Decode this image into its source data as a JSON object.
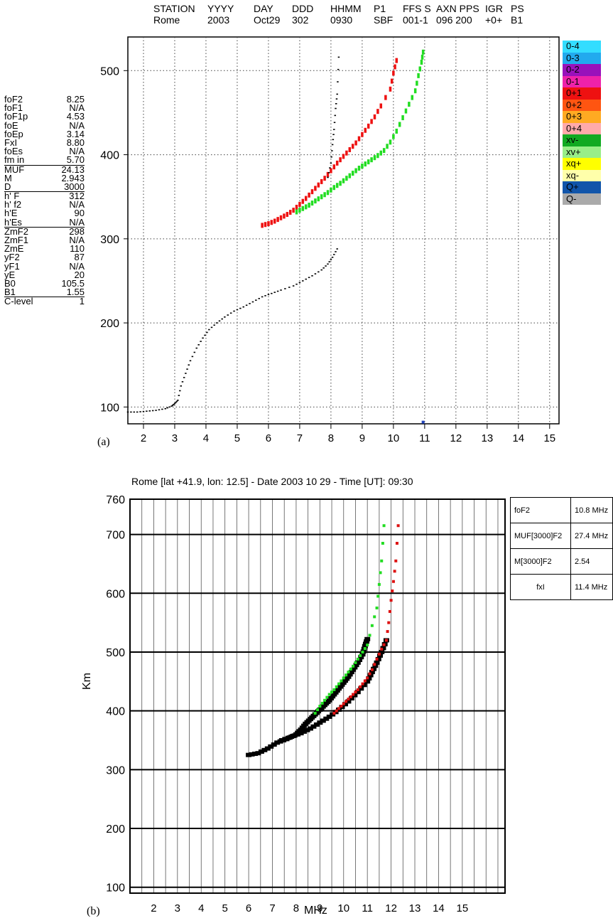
{
  "header": {
    "columns": [
      {
        "label": "STATION",
        "value": "Rome"
      },
      {
        "label": "YYYY",
        "value": "2003"
      },
      {
        "label": "DAY",
        "value": "Oct29"
      },
      {
        "label": "DDD",
        "value": "302"
      },
      {
        "label": "HHMM",
        "value": "0930"
      },
      {
        "label": "P1",
        "value": "SBF"
      },
      {
        "label": "FFS S",
        "value": "001-1"
      },
      {
        "label": "AXN PPS",
        "value": "096 200"
      },
      {
        "label": "IGR",
        "value": "+0+"
      },
      {
        "label": "PS",
        "value": "B1"
      }
    ]
  },
  "params": [
    {
      "name": "foF2",
      "value": "8.25"
    },
    {
      "name": "foF1",
      "value": "N/A"
    },
    {
      "name": "foF1p",
      "value": "4.53"
    },
    {
      "name": "foE",
      "value": "N/A"
    },
    {
      "name": "foEp",
      "value": "3.14"
    },
    {
      "name": "FxI",
      "value": "8.80"
    },
    {
      "name": "foEs",
      "value": "N/A"
    },
    {
      "name": "fm in",
      "value": "5.70"
    },
    {
      "name": "MUF",
      "value": "24.13",
      "sep": true
    },
    {
      "name": "M",
      "value": "2.943"
    },
    {
      "name": "D",
      "value": "3000"
    },
    {
      "name": "h' F",
      "value": "312",
      "sep": true
    },
    {
      "name": "h' f2",
      "value": "N/A"
    },
    {
      "name": "h'E",
      "value": "90"
    },
    {
      "name": "h'Es",
      "value": "N/A"
    },
    {
      "name": "ZmF2",
      "value": "298",
      "sep": true
    },
    {
      "name": "ZmF1",
      "value": "N/A"
    },
    {
      "name": "ZmE",
      "value": "110"
    },
    {
      "name": "yF2",
      "value": "87"
    },
    {
      "name": "yF1",
      "value": "N/A"
    },
    {
      "name": "yE",
      "value": "20"
    },
    {
      "name": "B0",
      "value": "105.5"
    },
    {
      "name": "B1",
      "value": "1.55"
    },
    {
      "name": "C-level",
      "value": "1",
      "sep": true
    }
  ],
  "legend": [
    {
      "label": "0-4",
      "color": "#33ddff"
    },
    {
      "label": "0-3",
      "color": "#22aaee"
    },
    {
      "label": "0-2",
      "color": "#9911bb"
    },
    {
      "label": "0-1",
      "color": "#ee22aa"
    },
    {
      "label": "0+1",
      "color": "#ee1111"
    },
    {
      "label": "0+2",
      "color": "#ff5511"
    },
    {
      "label": "0+3",
      "color": "#ffaa22"
    },
    {
      "label": "0+4",
      "color": "#ffaaaa"
    },
    {
      "label": "xv-",
      "color": "#11aa22"
    },
    {
      "label": "xv+",
      "color": "#99ee88"
    },
    {
      "label": "xq+",
      "color": "#ffff00"
    },
    {
      "label": "xq-",
      "color": "#ffffaa"
    },
    {
      "label": "Q+",
      "color": "#1155aa"
    },
    {
      "label": "Q-",
      "color": "#aaaaaa"
    }
  ],
  "panel_a_label": "(a)",
  "panel_b_label": "(b)",
  "table_b": [
    {
      "name": "foF2",
      "value": "10.8 MHz"
    },
    {
      "name": "MUF[3000]F2",
      "value": "27.4 MHz"
    },
    {
      "name": "M[3000]F2",
      "value": "2.54"
    },
    {
      "name": "fxI",
      "value": "11.4 MHz"
    }
  ],
  "chart_data": [
    {
      "type": "scatter",
      "x_ticks": [
        "2",
        "3",
        "4",
        "5",
        "6",
        "7",
        "8",
        "9",
        "10",
        "11",
        "12",
        "13",
        "14",
        "15"
      ],
      "y_ticks": [
        "100",
        "200",
        "300",
        "400",
        "500"
      ],
      "xlim": [
        1.5,
        15.3
      ],
      "ylim": [
        80,
        540
      ],
      "grid": true,
      "colors": {
        "ordinary": "#ee1111",
        "extraordinary": "#22dd22",
        "trace": "#000000"
      },
      "series": [
        {
          "key": "black_trace",
          "points": [
            [
              1.5,
              94
            ],
            [
              1.8,
              94
            ],
            [
              2.1,
              95
            ],
            [
              2.4,
              96
            ],
            [
              2.7,
              98
            ],
            [
              2.9,
              101
            ],
            [
              3.0,
              104
            ],
            [
              3.1,
              108
            ],
            [
              3.2,
              125
            ],
            [
              3.35,
              140
            ],
            [
              3.5,
              155
            ],
            [
              3.7,
              170
            ],
            [
              3.9,
              182
            ],
            [
              4.1,
              192
            ],
            [
              4.35,
              200
            ],
            [
              4.6,
              207
            ],
            [
              4.9,
              214
            ],
            [
              5.2,
              219
            ],
            [
              5.5,
              225
            ],
            [
              5.8,
              231
            ],
            [
              6.1,
              235
            ],
            [
              6.4,
              239
            ],
            [
              6.8,
              244
            ],
            [
              7.1,
              250
            ],
            [
              7.4,
              256
            ],
            [
              7.7,
              263
            ],
            [
              7.9,
              270
            ],
            [
              8.05,
              278
            ],
            [
              8.2,
              288
            ]
          ]
        },
        {
          "key": "o_trace",
          "points": [
            [
              5.8,
              316
            ],
            [
              6.0,
              318
            ],
            [
              6.2,
              321
            ],
            [
              6.4,
              325
            ],
            [
              6.6,
              329
            ],
            [
              6.8,
              334
            ],
            [
              7.0,
              341
            ],
            [
              7.2,
              348
            ],
            [
              7.4,
              356
            ],
            [
              7.6,
              364
            ],
            [
              7.8,
              372
            ],
            [
              8.0,
              381
            ],
            [
              8.2,
              390
            ],
            [
              8.4,
              398
            ],
            [
              8.6,
              406
            ],
            [
              8.8,
              414
            ],
            [
              9.0,
              424
            ],
            [
              9.2,
              434
            ],
            [
              9.4,
              445
            ],
            [
              9.6,
              458
            ],
            [
              9.9,
              478
            ],
            [
              10.0,
              497
            ],
            [
              10.1,
              512
            ]
          ]
        },
        {
          "key": "x_trace",
          "points": [
            [
              6.9,
              332
            ],
            [
              7.1,
              336
            ],
            [
              7.3,
              340
            ],
            [
              7.5,
              345
            ],
            [
              7.7,
              350
            ],
            [
              7.9,
              355
            ],
            [
              8.1,
              361
            ],
            [
              8.3,
              366
            ],
            [
              8.5,
              372
            ],
            [
              8.7,
              378
            ],
            [
              8.9,
              384
            ],
            [
              9.1,
              389
            ],
            [
              9.3,
              394
            ],
            [
              9.5,
              399
            ],
            [
              9.7,
              405
            ],
            [
              9.9,
              415
            ],
            [
              10.1,
              428
            ],
            [
              10.3,
              444
            ],
            [
              10.5,
              460
            ],
            [
              10.7,
              476
            ],
            [
              10.8,
              494
            ],
            [
              10.9,
              510
            ],
            [
              10.95,
              522
            ]
          ]
        },
        {
          "key": "black_upper",
          "points": [
            [
              7.9,
              373
            ],
            [
              8.0,
              390
            ],
            [
              8.05,
              412
            ],
            [
              8.1,
              430
            ],
            [
              8.15,
              455
            ],
            [
              8.2,
              472
            ],
            [
              8.25,
              516
            ]
          ]
        },
        {
          "key": "marker",
          "points": [
            [
              10.95,
              82
            ]
          ]
        }
      ]
    },
    {
      "type": "scatter",
      "title": "Rome [lat +41.9, lon: 12.5] - Date 2003 10 29 - Time [UT]: 09:30",
      "xlabel": "MHz",
      "ylabel": "Km",
      "x_ticks": [
        "2",
        "3",
        "4",
        "5",
        "6",
        "7",
        "8",
        "9",
        "10",
        "11",
        "12",
        "13",
        "14",
        "15"
      ],
      "y_ticks": [
        "100",
        "200",
        "300",
        "400",
        "500",
        "600",
        "700",
        "760"
      ],
      "xlim": [
        1,
        16.8
      ],
      "ylim": [
        90,
        760
      ],
      "grid": true,
      "colors": {
        "ordinary": "#dd1111",
        "extraordinary": "#22dd22",
        "trace": "#000000"
      },
      "series": [
        {
          "key": "black_trace",
          "points": [
            [
              6.0,
              325
            ],
            [
              6.4,
              328
            ],
            [
              6.8,
              336
            ],
            [
              7.2,
              346
            ],
            [
              7.6,
              352
            ],
            [
              8.0,
              360
            ],
            [
              8.2,
              368
            ],
            [
              8.4,
              378
            ],
            [
              8.6,
              386
            ],
            [
              8.8,
              394
            ],
            [
              9.0,
              402
            ],
            [
              9.2,
              410
            ],
            [
              9.4,
              418
            ],
            [
              9.6,
              428
            ],
            [
              9.8,
              438
            ],
            [
              10.0,
              448
            ],
            [
              10.2,
              458
            ],
            [
              10.4,
              470
            ],
            [
              10.6,
              482
            ],
            [
              10.8,
              496
            ],
            [
              10.9,
              510
            ],
            [
              11.0,
              522
            ]
          ]
        },
        {
          "key": "black_lower",
          "points": [
            [
              7.4,
              350
            ],
            [
              7.8,
              356
            ],
            [
              8.2,
              362
            ],
            [
              8.6,
              370
            ],
            [
              9.0,
              380
            ],
            [
              9.4,
              390
            ],
            [
              9.8,
              402
            ],
            [
              10.2,
              416
            ],
            [
              10.6,
              432
            ],
            [
              11.0,
              450
            ],
            [
              11.2,
              466
            ],
            [
              11.4,
              482
            ],
            [
              11.6,
              500
            ],
            [
              11.8,
              520
            ]
          ]
        },
        {
          "key": "green_trace",
          "points": [
            [
              8.8,
              396
            ],
            [
              9.0,
              408
            ],
            [
              9.2,
              418
            ],
            [
              9.4,
              428
            ],
            [
              9.6,
              436
            ],
            [
              9.8,
              446
            ],
            [
              10.0,
              456
            ],
            [
              10.2,
              466
            ],
            [
              10.4,
              476
            ],
            [
              10.6,
              488
            ],
            [
              10.8,
              500
            ],
            [
              11.0,
              512
            ],
            [
              11.2,
              545
            ],
            [
              11.4,
              575
            ],
            [
              11.5,
              615
            ],
            [
              11.6,
              655
            ],
            [
              11.7,
              715
            ]
          ]
        },
        {
          "key": "red_trace",
          "points": [
            [
              9.6,
              396
            ],
            [
              9.8,
              404
            ],
            [
              10.0,
              412
            ],
            [
              10.2,
              420
            ],
            [
              10.4,
              428
            ],
            [
              10.6,
              436
            ],
            [
              10.8,
              446
            ],
            [
              11.0,
              456
            ],
            [
              11.2,
              470
            ],
            [
              11.4,
              488
            ],
            [
              11.6,
              505
            ],
            [
              11.8,
              520
            ],
            [
              11.9,
              550
            ],
            [
              12.0,
              588
            ],
            [
              12.1,
              620
            ],
            [
              12.2,
              655
            ],
            [
              12.3,
              715
            ]
          ]
        }
      ]
    }
  ]
}
